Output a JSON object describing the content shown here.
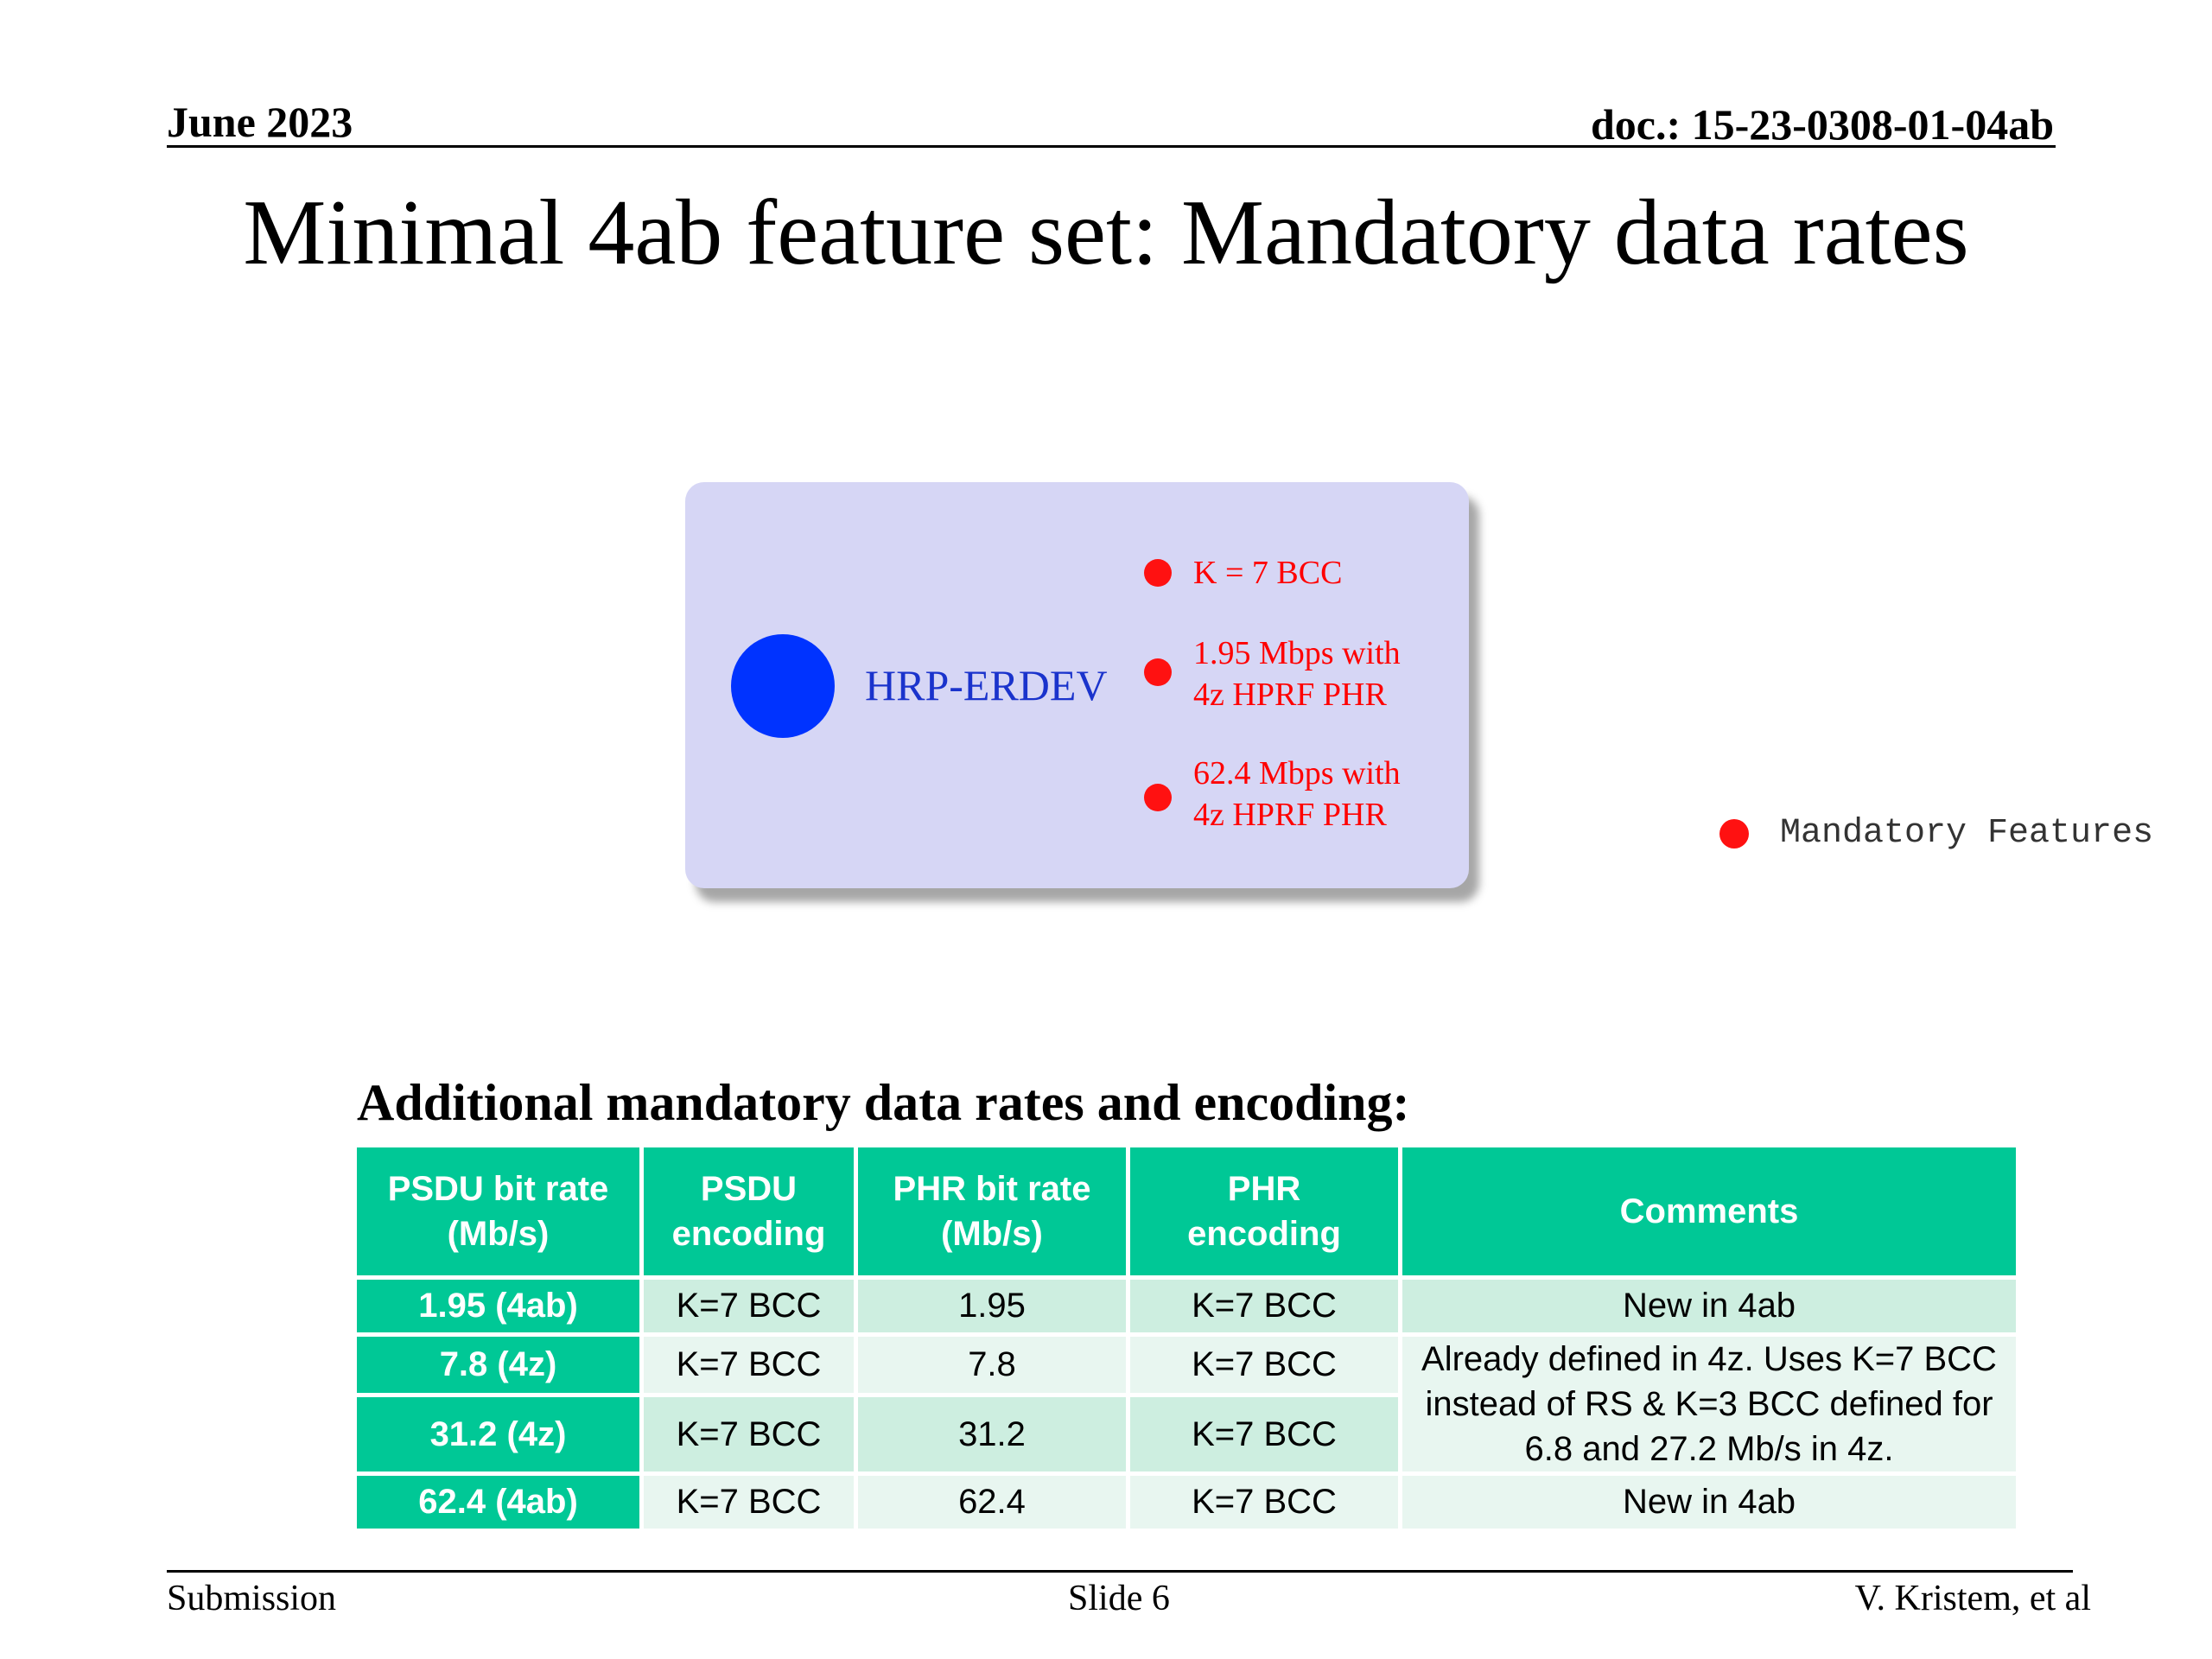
{
  "header": {
    "date": "June 2023",
    "doc_id": "doc.: 15-23-0308-01-04ab"
  },
  "title": "Minimal 4ab feature set: Mandatory data rates",
  "feature_panel": {
    "device_label": "HRP-ERDEV",
    "features": [
      {
        "lines": [
          "K = 7 BCC"
        ]
      },
      {
        "lines": [
          "1.95 Mbps with",
          "4z HPRF PHR"
        ]
      },
      {
        "lines": [
          "62.4 Mbps with",
          "4z HPRF PHR"
        ]
      }
    ],
    "colors": {
      "panel_bg": "#d6d6f5",
      "device_dot": "#0033ff",
      "feature_dot": "#ff1111",
      "feature_text": "#ff0000"
    }
  },
  "legend": {
    "label": "Mandatory Features",
    "icon": "red-dot-icon"
  },
  "table": {
    "heading": "Additional mandatory data rates and encoding:",
    "columns": [
      {
        "lines": [
          "PSDU bit rate",
          "(Mb/s)"
        ]
      },
      {
        "lines": [
          "PSDU",
          "encoding"
        ]
      },
      {
        "lines": [
          "PHR bit rate",
          "(Mb/s)"
        ]
      },
      {
        "lines": [
          "PHR",
          "encoding"
        ]
      },
      {
        "lines": [
          "Comments"
        ]
      }
    ],
    "rows": [
      {
        "psdu_rate": "1.95 (4ab)",
        "psdu_encoding": "K=7 BCC",
        "phr_rate": "1.95",
        "phr_encoding": "K=7 BCC",
        "comment": "New in 4ab"
      },
      {
        "psdu_rate": "7.8 (4z)",
        "psdu_encoding": "K=7 BCC",
        "phr_rate": "7.8",
        "phr_encoding": "K=7 BCC",
        "comment": "Already defined in 4z. Uses K=7 BCC instead of RS & K=3 BCC defined for 6.8 and 27.2 Mb/s in 4z."
      },
      {
        "psdu_rate": "31.2 (4z)",
        "psdu_encoding": "K=7 BCC",
        "phr_rate": "31.2",
        "phr_encoding": "K=7 BCC"
      },
      {
        "psdu_rate": "62.4 (4ab)",
        "psdu_encoding": "K=7 BCC",
        "phr_rate": "62.4",
        "phr_encoding": "K=7 BCC",
        "comment": "New in 4ab"
      }
    ],
    "colors": {
      "header_bg": "#00c896",
      "row_dark": "#cdeee0",
      "row_light": "#e8f6f0"
    }
  },
  "footer": {
    "left": "Submission",
    "center": "Slide 6",
    "right": "V. Kristem, et al"
  }
}
